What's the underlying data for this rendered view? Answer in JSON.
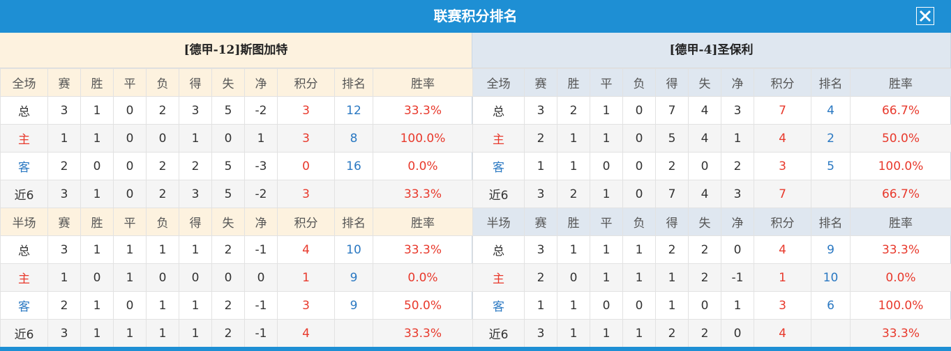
{
  "header": {
    "title": "联赛积分排名"
  },
  "teams": [
    {
      "name": "[德甲-12]斯图加特",
      "full": {
        "columns": [
          "全场",
          "赛",
          "胜",
          "平",
          "负",
          "得",
          "失",
          "净",
          "积分",
          "排名",
          "胜率"
        ],
        "rows": [
          [
            "总",
            3,
            1,
            0,
            2,
            3,
            5,
            -2,
            3,
            12,
            "33.3%"
          ],
          [
            "主",
            1,
            1,
            0,
            0,
            1,
            0,
            1,
            3,
            8,
            "100.0%"
          ],
          [
            "客",
            2,
            0,
            0,
            2,
            2,
            5,
            -3,
            0,
            16,
            "0.0%"
          ],
          [
            "近6",
            3,
            1,
            0,
            2,
            3,
            5,
            -2,
            3,
            null,
            "33.3%"
          ]
        ]
      },
      "half": {
        "columns": [
          "半场",
          "赛",
          "胜",
          "平",
          "负",
          "得",
          "失",
          "净",
          "积分",
          "排名",
          "胜率"
        ],
        "rows": [
          [
            "总",
            3,
            1,
            1,
            1,
            1,
            2,
            -1,
            4,
            10,
            "33.3%"
          ],
          [
            "主",
            1,
            0,
            1,
            0,
            0,
            0,
            0,
            1,
            9,
            "0.0%"
          ],
          [
            "客",
            2,
            1,
            0,
            1,
            1,
            2,
            -1,
            3,
            9,
            "50.0%"
          ],
          [
            "近6",
            3,
            1,
            1,
            1,
            1,
            2,
            -1,
            4,
            null,
            "33.3%"
          ]
        ]
      }
    },
    {
      "name": "[德甲-4]圣保利",
      "full": {
        "columns": [
          "全场",
          "赛",
          "胜",
          "平",
          "负",
          "得",
          "失",
          "净",
          "积分",
          "排名",
          "胜率"
        ],
        "rows": [
          [
            "总",
            3,
            2,
            1,
            0,
            7,
            4,
            3,
            7,
            4,
            "66.7%"
          ],
          [
            "主",
            2,
            1,
            1,
            0,
            5,
            4,
            1,
            4,
            2,
            "50.0%"
          ],
          [
            "客",
            1,
            1,
            0,
            0,
            2,
            0,
            2,
            3,
            5,
            "100.0%"
          ],
          [
            "近6",
            3,
            2,
            1,
            0,
            7,
            4,
            3,
            7,
            null,
            "66.7%"
          ]
        ]
      },
      "half": {
        "columns": [
          "半场",
          "赛",
          "胜",
          "平",
          "负",
          "得",
          "失",
          "净",
          "积分",
          "排名",
          "胜率"
        ],
        "rows": [
          [
            "总",
            3,
            1,
            1,
            1,
            2,
            2,
            0,
            4,
            9,
            "33.3%"
          ],
          [
            "主",
            2,
            0,
            1,
            1,
            1,
            2,
            -1,
            1,
            10,
            "0.0%"
          ],
          [
            "客",
            1,
            1,
            0,
            0,
            1,
            0,
            1,
            3,
            6,
            "100.0%"
          ],
          [
            "近6",
            3,
            1,
            1,
            1,
            2,
            2,
            0,
            4,
            null,
            "33.3%"
          ]
        ]
      }
    }
  ]
}
